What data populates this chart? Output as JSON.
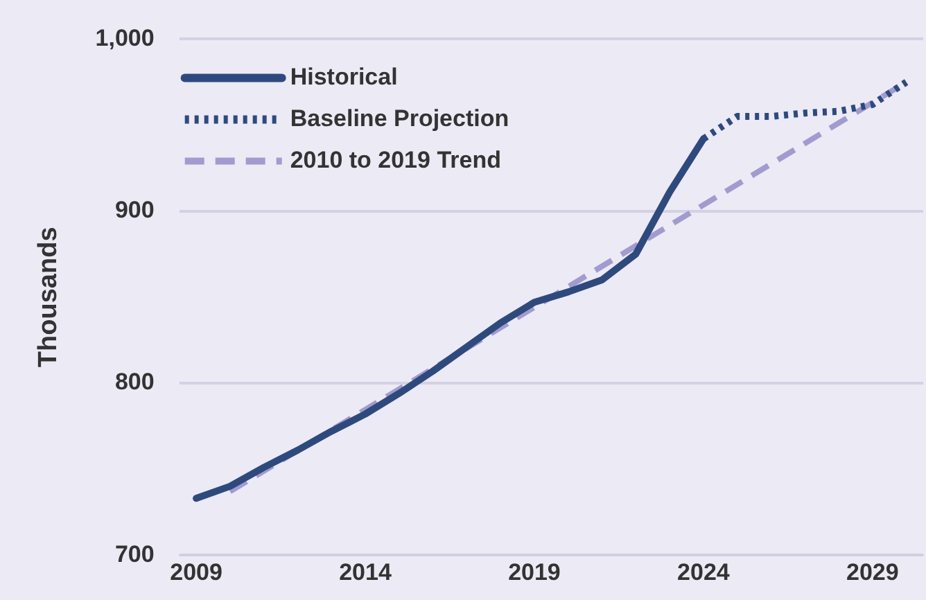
{
  "chart_data": {
    "type": "line",
    "ylabel": "Thousands",
    "xlim": [
      2008.5,
      2030.5
    ],
    "xticks": [
      2009,
      2014,
      2019,
      2024,
      2029
    ],
    "ylim": [
      700,
      1000
    ],
    "yticks": [
      700,
      800,
      900,
      {
        "value": 1000,
        "label": "1,000"
      }
    ],
    "grid": "y",
    "legend": "top left",
    "marker": "none",
    "series": [
      {
        "name": "Historical",
        "color": "#2e4a7d",
        "line_style": "solid",
        "x": [
          2009,
          2010,
          2011,
          2012,
          2013,
          2014,
          2015,
          2016,
          2017,
          2018,
          2019,
          2020,
          2021,
          2022,
          2023,
          2024
        ],
        "values": [
          733,
          740,
          751,
          761,
          772,
          782,
          794,
          807,
          821,
          835,
          847,
          853,
          860,
          875,
          911,
          942
        ]
      },
      {
        "name": "Baseline Projection",
        "color": "#2e4a7d",
        "line_style": "dotted",
        "x": [
          2024,
          2025,
          2026,
          2027,
          2028,
          2029,
          2030
        ],
        "values": [
          942,
          955,
          955,
          957,
          958,
          962,
          975
        ]
      },
      {
        "name": "2010 to 2019 Trend",
        "color": "#a29bd0",
        "line_style": "dashed",
        "x": [
          2010,
          2030
        ],
        "values": [
          737,
          975
        ]
      }
    ]
  }
}
